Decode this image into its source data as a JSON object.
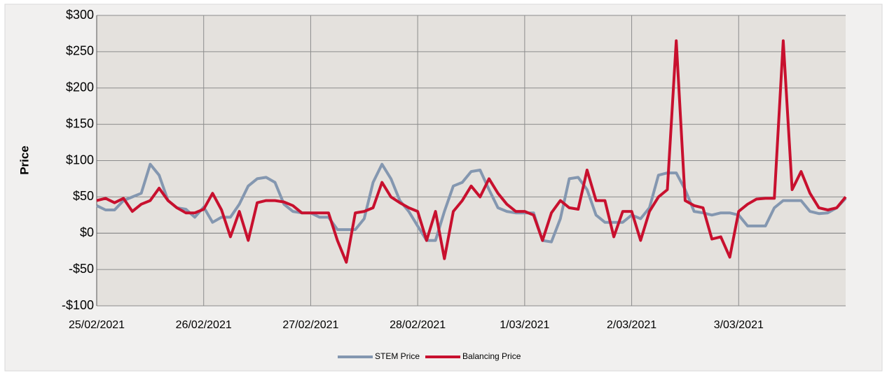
{
  "chart_data": {
    "type": "line",
    "y_label": "Price",
    "categories": [
      "25/02/2021",
      null,
      null,
      null,
      null,
      null,
      null,
      null,
      null,
      null,
      null,
      null,
      "26/02/2021",
      null,
      null,
      null,
      null,
      null,
      null,
      null,
      null,
      null,
      null,
      null,
      "27/02/2021",
      null,
      null,
      null,
      null,
      null,
      null,
      null,
      null,
      null,
      null,
      null,
      "28/02/2021",
      null,
      null,
      null,
      null,
      null,
      null,
      null,
      null,
      null,
      null,
      null,
      "1/03/2021",
      null,
      null,
      null,
      null,
      null,
      null,
      null,
      null,
      null,
      null,
      null,
      "2/03/2021",
      null,
      null,
      null,
      null,
      null,
      null,
      null,
      null,
      null,
      null,
      null,
      "3/03/2021",
      null,
      null,
      null,
      null,
      null,
      null,
      null,
      null,
      null,
      null,
      null,
      null
    ],
    "series": [
      {
        "name": "STEM Price",
        "color": "#8497b0",
        "values": [
          38,
          32,
          32,
          45,
          50,
          55,
          95,
          80,
          45,
          35,
          33,
          22,
          36,
          15,
          22,
          22,
          40,
          65,
          75,
          77,
          70,
          40,
          30,
          28,
          28,
          22,
          22,
          5,
          5,
          5,
          20,
          70,
          95,
          75,
          45,
          30,
          10,
          -10,
          -10,
          30,
          65,
          70,
          85,
          87,
          60,
          35,
          30,
          28,
          28,
          28,
          -10,
          -12,
          20,
          75,
          77,
          60,
          25,
          15,
          15,
          15,
          25,
          20,
          35,
          80,
          83,
          83,
          60,
          30,
          28,
          25,
          28,
          28,
          25,
          10,
          10,
          10,
          35,
          45,
          45,
          45,
          30,
          27,
          28,
          35,
          48
        ]
      },
      {
        "name": "Balancing Price",
        "color": "#c8102e",
        "values": [
          45,
          48,
          42,
          48,
          30,
          40,
          45,
          62,
          45,
          35,
          28,
          28,
          33,
          55,
          32,
          -5,
          30,
          -10,
          42,
          45,
          45,
          43,
          38,
          28,
          28,
          28,
          28,
          -10,
          -40,
          28,
          30,
          35,
          70,
          50,
          42,
          35,
          30,
          -10,
          30,
          -35,
          30,
          45,
          65,
          50,
          75,
          55,
          40,
          30,
          30,
          25,
          -10,
          28,
          45,
          35,
          33,
          87,
          45,
          45,
          -5,
          30,
          30,
          -10,
          30,
          50,
          60,
          265,
          45,
          38,
          35,
          -8,
          -5,
          -33,
          30,
          40,
          47,
          48,
          48,
          265,
          60,
          85,
          55,
          35,
          32,
          35,
          50
        ]
      }
    ],
    "ylim": [
      -100,
      300
    ],
    "yticks": [
      {
        "value": -100,
        "label": "-$100"
      },
      {
        "value": -50,
        "label": "-$50"
      },
      {
        "value": 0,
        "label": "$0"
      },
      {
        "value": 50,
        "label": "$50"
      },
      {
        "value": 100,
        "label": "$100"
      },
      {
        "value": 150,
        "label": "$150"
      },
      {
        "value": 200,
        "label": "$200"
      },
      {
        "value": 250,
        "label": "$250"
      },
      {
        "value": 300,
        "label": "$300"
      }
    ],
    "grid": true,
    "legend": "bottom"
  }
}
